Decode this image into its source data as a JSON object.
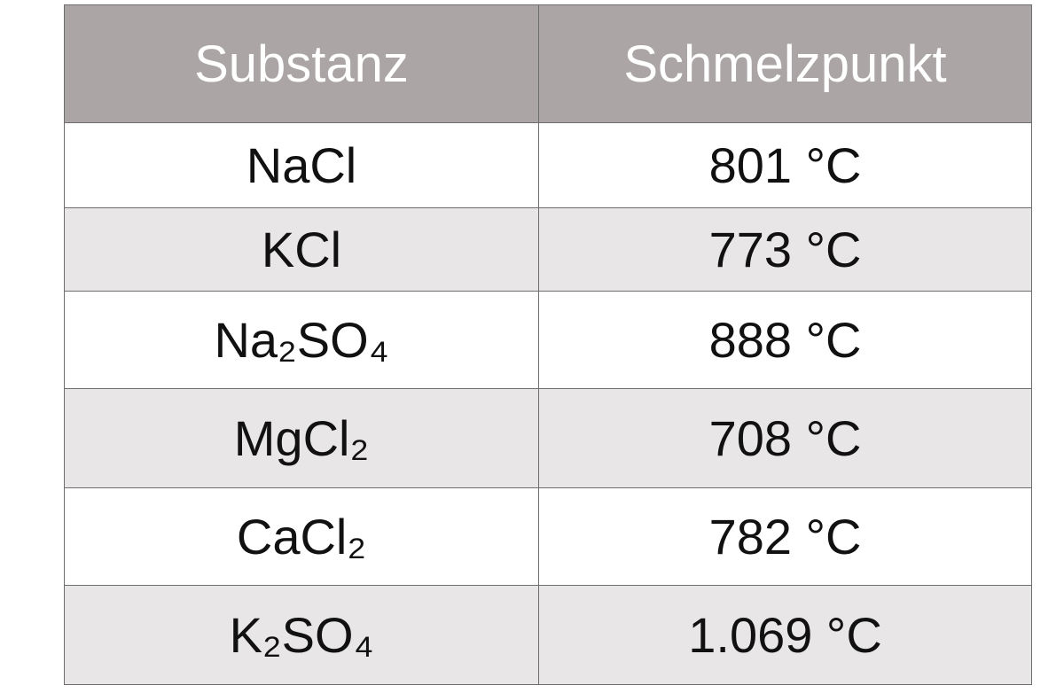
{
  "table": {
    "header": [
      "Substanz",
      "Schmelzpunkt"
    ],
    "rows": [
      [
        "NaCl",
        "801 °C"
      ],
      [
        "KCl",
        "773 °C"
      ],
      [
        "Na₂SO₄",
        "888 °C"
      ],
      [
        "MgCl₂",
        "708 °C"
      ],
      [
        "CaCl₂",
        "782 °C"
      ],
      [
        "K₂SO₄",
        "1.069 °C"
      ]
    ]
  }
}
